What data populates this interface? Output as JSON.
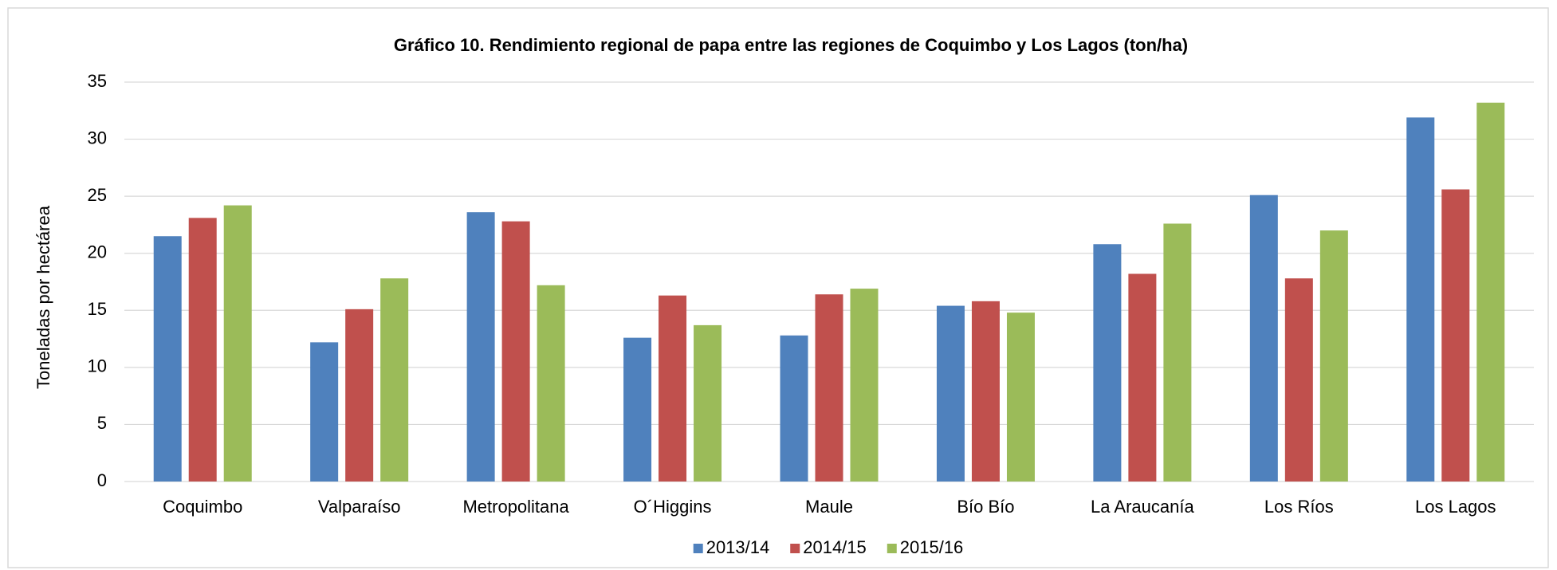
{
  "chart_data": {
    "type": "bar",
    "title": "Gráfico 10. Rendimiento regional de papa entre las regiones de Coquimbo y Los Lagos (ton/ha)",
    "y_label": "Toneladas por hectárea",
    "categories": [
      "Coquimbo",
      "Valparaíso",
      "Metropolitana",
      "O´Higgins",
      "Maule",
      "Bío Bío",
      "La Araucanía",
      "Los Ríos",
      "Los Lagos"
    ],
    "series": [
      {
        "name": "2013/14",
        "color": "#4f81bd",
        "values": [
          21.5,
          12.2,
          23.6,
          12.6,
          12.8,
          15.4,
          20.8,
          25.1,
          31.9
        ]
      },
      {
        "name": "2014/15",
        "color": "#c0504d",
        "values": [
          23.1,
          15.1,
          22.8,
          16.3,
          16.4,
          15.8,
          18.2,
          17.8,
          25.6
        ]
      },
      {
        "name": "2015/16",
        "color": "#9bbb59",
        "values": [
          24.2,
          17.8,
          17.2,
          13.7,
          16.9,
          14.8,
          22.6,
          22.0,
          33.2
        ]
      }
    ],
    "ylim": [
      0,
      35
    ],
    "yticks": [
      0,
      5,
      10,
      15,
      20,
      25,
      30,
      35
    ],
    "grid": true,
    "legend": "bottom"
  }
}
